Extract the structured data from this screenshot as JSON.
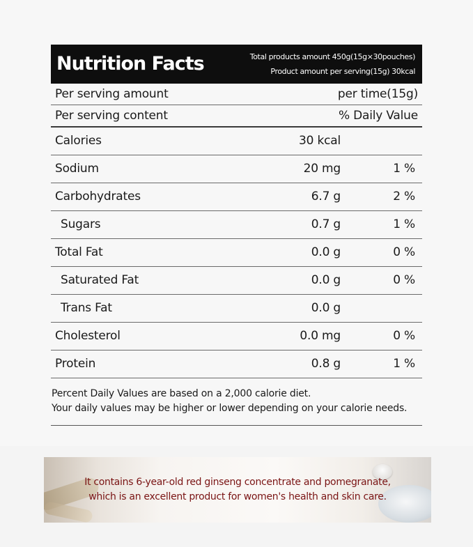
{
  "header": {
    "title": "Nutrition Facts",
    "total_amount": "Total products amount 450g(15g×30pouches)",
    "serving_amount": "Product amount per serving(15g) 30kcal"
  },
  "serving_rows": [
    {
      "label": "Per serving amount",
      "value": "per time(15g)"
    },
    {
      "label": "Per serving content",
      "value": "% Daily Value"
    }
  ],
  "nutrients": [
    {
      "name": "Calories",
      "amount": "30 kcal",
      "dv": "",
      "indent": false
    },
    {
      "name": "Sodium",
      "amount": "20 mg",
      "dv": "1 %",
      "indent": false
    },
    {
      "name": "Carbohydrates",
      "amount": "6.7 g",
      "dv": "2 %",
      "indent": false
    },
    {
      "name": "Sugars",
      "amount": "0.7 g",
      "dv": "1 %",
      "indent": true
    },
    {
      "name": "Total Fat",
      "amount": "0.0 g",
      "dv": "0 %",
      "indent": false
    },
    {
      "name": "Saturated Fat",
      "amount": "0.0 g",
      "dv": "0 %",
      "indent": true
    },
    {
      "name": "Trans Fat",
      "amount": "0.0 g",
      "dv": "",
      "indent": true
    },
    {
      "name": "Cholesterol",
      "amount": "0.0 mg",
      "dv": "0 %",
      "indent": false
    },
    {
      "name": "Protein",
      "amount": "0.8 g",
      "dv": "1 %",
      "indent": false
    }
  ],
  "footnote": {
    "line1": "Percent Daily Values are based on a 2,000 calorie diet.",
    "line2": "Your daily values may be higher or lower depending on your calorie needs."
  },
  "banner": {
    "line1": "It contains 6-year-old red ginseng concentrate and pomegranate,",
    "line2": "which is an excellent product for women's health and skin care.",
    "text_color": "#7a1414"
  }
}
